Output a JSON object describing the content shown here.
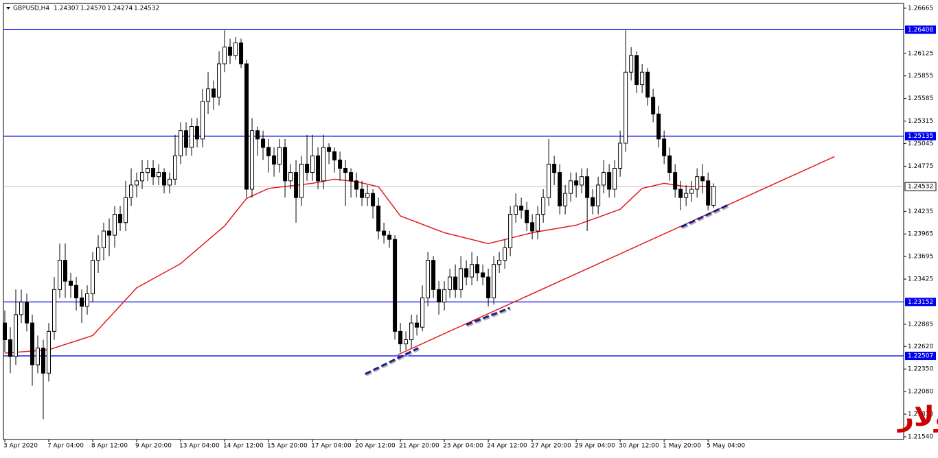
{
  "chart_data": {
    "type": "candlestick",
    "header_symbol": "GBPUSD,H4",
    "header_ohlc": [
      "1.24307",
      "1.24570",
      "1.24274",
      "1.24532"
    ],
    "annotation": "الباوند دولار",
    "annotation_color": "#cc0000",
    "up_color": "#ffffff",
    "down_color": "#000000",
    "open": [
      1.229,
      1.227,
      1.225,
      1.23,
      1.2315,
      1.229,
      1.224,
      1.226,
      1.223,
      1.228,
      1.233,
      1.2365,
      1.234,
      1.2335,
      1.232,
      1.231,
      1.2325,
      1.2365,
      1.238,
      1.24,
      1.2395,
      1.242,
      1.241,
      1.244,
      1.2455,
      1.246,
      1.247,
      1.2475,
      1.2465,
      1.247,
      1.2455,
      1.2462,
      1.249,
      1.252,
      1.25,
      1.2525,
      1.251,
      1.2555,
      1.257,
      1.256,
      1.26,
      1.262,
      1.261,
      1.2625,
      1.26,
      1.245,
      1.252,
      1.251,
      1.25,
      1.249,
      1.248,
      1.25,
      1.246,
      1.247,
      1.244,
      1.248,
      1.247,
      1.249,
      1.246,
      1.25,
      1.2495,
      1.2485,
      1.2475,
      1.247,
      1.246,
      1.245,
      1.244,
      1.2445,
      1.243,
      1.24,
      1.2395,
      1.239,
      1.228,
      1.2265,
      1.227,
      1.229,
      1.2285,
      1.232,
      1.2365,
      1.233,
      1.2315,
      1.233,
      1.2345,
      1.233,
      1.2355,
      1.2345,
      1.236,
      1.235,
      1.2345,
      1.232,
      1.236,
      1.2365,
      1.238,
      1.242,
      1.243,
      1.2425,
      1.241,
      1.24,
      1.242,
      1.244,
      1.248,
      1.247,
      1.243,
      1.2445,
      1.246,
      1.2455,
      1.2465,
      1.244,
      1.243,
      1.2455,
      1.247,
      1.245,
      1.2475,
      1.2505,
      1.259,
      1.261,
      1.2575,
      1.259,
      1.256,
      1.254,
      1.251,
      1.249,
      1.247,
      1.245,
      1.244,
      1.2445,
      1.245,
      1.2465,
      1.246,
      1.24307
    ],
    "high": [
      1.2305,
      1.2285,
      1.233,
      1.233,
      1.2325,
      1.23,
      1.2275,
      1.227,
      1.229,
      1.2345,
      1.2385,
      1.2385,
      1.235,
      1.2345,
      1.233,
      1.2335,
      1.2375,
      1.2395,
      1.241,
      1.2415,
      1.243,
      1.243,
      1.246,
      1.2475,
      1.247,
      1.2485,
      1.2485,
      1.2485,
      1.248,
      1.2475,
      1.247,
      1.2515,
      1.253,
      1.253,
      1.2535,
      1.2535,
      1.257,
      1.259,
      1.258,
      1.2615,
      1.264,
      1.263,
      1.2632,
      1.263,
      1.2605,
      1.2535,
      1.2525,
      1.252,
      1.251,
      1.25,
      1.251,
      1.251,
      1.248,
      1.2485,
      1.249,
      1.2515,
      1.2515,
      1.25,
      1.2515,
      1.2505,
      1.25,
      1.2495,
      1.2485,
      1.2475,
      1.247,
      1.246,
      1.2455,
      1.245,
      1.244,
      1.241,
      1.24,
      1.2395,
      1.229,
      1.228,
      1.23,
      1.23,
      1.2335,
      1.2375,
      1.237,
      1.234,
      1.234,
      1.2355,
      1.236,
      1.237,
      1.2365,
      1.2375,
      1.237,
      1.236,
      1.2355,
      1.237,
      1.2375,
      1.239,
      1.243,
      1.2445,
      1.244,
      1.2435,
      1.242,
      1.243,
      1.245,
      1.251,
      1.249,
      1.248,
      1.2455,
      1.247,
      1.247,
      1.2475,
      1.2475,
      1.245,
      1.2465,
      1.2485,
      1.248,
      1.2485,
      1.252,
      1.264,
      1.262,
      1.2615,
      1.26,
      1.2595,
      1.257,
      1.255,
      1.252,
      1.25,
      1.248,
      1.246,
      1.2455,
      1.246,
      1.2475,
      1.248,
      1.247,
      1.2457
    ],
    "low": [
      1.2255,
      1.223,
      1.224,
      1.229,
      1.228,
      1.2215,
      1.223,
      1.2175,
      1.222,
      1.227,
      1.232,
      1.232,
      1.232,
      1.2305,
      1.229,
      1.23,
      1.2315,
      1.235,
      1.2365,
      1.237,
      1.238,
      1.24,
      1.24,
      1.243,
      1.244,
      1.245,
      1.246,
      1.2455,
      1.2455,
      1.2445,
      1.2445,
      1.2455,
      1.248,
      1.249,
      1.249,
      1.25,
      1.25,
      1.254,
      1.2545,
      1.255,
      1.259,
      1.26,
      1.2605,
      1.2595,
      1.244,
      1.244,
      1.249,
      1.2485,
      1.247,
      1.2465,
      1.247,
      1.244,
      1.245,
      1.241,
      1.243,
      1.246,
      1.246,
      1.245,
      1.245,
      1.248,
      1.247,
      1.246,
      1.243,
      1.244,
      1.244,
      1.243,
      1.243,
      1.2415,
      1.239,
      1.2385,
      1.238,
      1.227,
      1.2255,
      1.2258,
      1.226,
      1.2275,
      1.228,
      1.231,
      1.232,
      1.23,
      1.2305,
      1.232,
      1.232,
      1.232,
      1.2335,
      1.2335,
      1.234,
      1.2335,
      1.231,
      1.2312,
      1.235,
      1.2355,
      1.237,
      1.241,
      1.2415,
      1.24,
      1.239,
      1.239,
      1.241,
      1.243,
      1.2455,
      1.242,
      1.242,
      1.2435,
      1.244,
      1.2445,
      1.24,
      1.242,
      1.242,
      1.2445,
      1.244,
      1.244,
      1.2465,
      1.2495,
      1.258,
      1.2565,
      1.2565,
      1.255,
      1.253,
      1.25,
      1.248,
      1.246,
      1.244,
      1.2425,
      1.243,
      1.2435,
      1.244,
      1.2445,
      1.2425,
      1.24274
    ],
    "close": [
      1.227,
      1.225,
      1.23,
      1.2315,
      1.229,
      1.224,
      1.226,
      1.223,
      1.228,
      1.233,
      1.2365,
      1.234,
      1.2335,
      1.232,
      1.231,
      1.2325,
      1.2365,
      1.238,
      1.24,
      1.2395,
      1.242,
      1.241,
      1.244,
      1.2455,
      1.246,
      1.247,
      1.2475,
      1.2465,
      1.247,
      1.2455,
      1.2462,
      1.249,
      1.252,
      1.25,
      1.2525,
      1.251,
      1.2555,
      1.257,
      1.256,
      1.26,
      1.262,
      1.261,
      1.2625,
      1.26,
      1.245,
      1.252,
      1.251,
      1.25,
      1.249,
      1.248,
      1.25,
      1.246,
      1.247,
      1.244,
      1.248,
      1.247,
      1.249,
      1.246,
      1.25,
      1.2495,
      1.2485,
      1.2475,
      1.247,
      1.246,
      1.245,
      1.244,
      1.2445,
      1.243,
      1.24,
      1.2395,
      1.239,
      1.228,
      1.2265,
      1.227,
      1.229,
      1.2285,
      1.232,
      1.2365,
      1.233,
      1.2315,
      1.233,
      1.2345,
      1.233,
      1.2355,
      1.2345,
      1.236,
      1.235,
      1.2345,
      1.232,
      1.236,
      1.2365,
      1.238,
      1.242,
      1.243,
      1.2425,
      1.241,
      1.24,
      1.242,
      1.244,
      1.248,
      1.247,
      1.243,
      1.2445,
      1.246,
      1.2455,
      1.2465,
      1.244,
      1.243,
      1.2455,
      1.247,
      1.245,
      1.2475,
      1.2505,
      1.259,
      1.261,
      1.2575,
      1.259,
      1.256,
      1.254,
      1.251,
      1.249,
      1.247,
      1.245,
      1.244,
      1.2445,
      1.245,
      1.2465,
      1.246,
      1.2431,
      1.24532
    ],
    "ma": {
      "color": "#e31a1c",
      "x": [
        0,
        8,
        16,
        24,
        32,
        40,
        44,
        48,
        56,
        60,
        64,
        68,
        72,
        80,
        88,
        96,
        104,
        112,
        116,
        120,
        124,
        129
      ],
      "values": [
        1.2254,
        1.2258,
        1.2275,
        1.2332,
        1.2361,
        1.2406,
        1.2439,
        1.2451,
        1.2457,
        1.2462,
        1.2459,
        1.2453,
        1.2418,
        1.2398,
        1.2385,
        1.2398,
        1.2407,
        1.2426,
        1.2451,
        1.2457,
        1.2453,
        1.2453
      ]
    },
    "trendline": {
      "color": "#e31a1c",
      "x": [
        71.5,
        151
      ],
      "values": [
        1.2252,
        1.2489
      ]
    },
    "dashed_lines": {
      "color": "#1a1a8c",
      "items": [
        {
          "x": [
            65.6,
            75.25
          ],
          "values": [
            1.2229,
            1.226
          ]
        },
        {
          "x": [
            84,
            91.9
          ],
          "values": [
            1.2288,
            1.2308
          ]
        },
        {
          "x": [
            123.1,
            131.9
          ],
          "values": [
            1.2405,
            1.2432
          ]
        }
      ]
    },
    "levels": {
      "color": "#0000ee",
      "values": [
        1.26408,
        1.25135,
        1.23152,
        1.22507
      ]
    },
    "last_price": 1.24532,
    "xlim": [
      -0.25,
      163.6
    ],
    "ylim": [
      1.21507,
      1.26722
    ],
    "xticks": [
      {
        "value": 0,
        "label": "3 Apr 2020"
      },
      {
        "value": 8,
        "label": "7 Apr 04:00"
      },
      {
        "value": 16,
        "label": "8 Apr 12:00"
      },
      {
        "value": 24,
        "label": "9 Apr 20:00"
      },
      {
        "value": 32,
        "label": "13 Apr 04:00"
      },
      {
        "value": 40,
        "label": "14 Apr 12:00"
      },
      {
        "value": 48,
        "label": "15 Apr 20:00"
      },
      {
        "value": 56,
        "label": "17 Apr 04:00"
      },
      {
        "value": 64,
        "label": "20 Apr 12:00"
      },
      {
        "value": 72,
        "label": "21 Apr 20:00"
      },
      {
        "value": 80,
        "label": "23 Apr 04:00"
      },
      {
        "value": 88,
        "label": "24 Apr 12:00"
      },
      {
        "value": 96,
        "label": "27 Apr 20:00"
      },
      {
        "value": 104,
        "label": "29 Apr 04:00"
      },
      {
        "value": 112,
        "label": "30 Apr 12:00"
      },
      {
        "value": 120,
        "label": "1 May 20:00"
      },
      {
        "value": 128,
        "label": "5 May 04:00"
      }
    ],
    "yticks": [
      1.26665,
      1.26125,
      1.25855,
      1.25585,
      1.25315,
      1.25045,
      1.24775,
      1.24235,
      1.23965,
      1.23695,
      1.23425,
      1.22885,
      {
        "value": 1.2262,
        "label": "1.22620"
      },
      {
        "value": 1.2235,
        "label": "1.22350"
      },
      {
        "value": 1.2208,
        "label": "1.22080"
      },
      {
        "value": 1.2181,
        "label": "1.21810"
      },
      {
        "value": 1.2154,
        "label": "1.21540"
      }
    ]
  }
}
